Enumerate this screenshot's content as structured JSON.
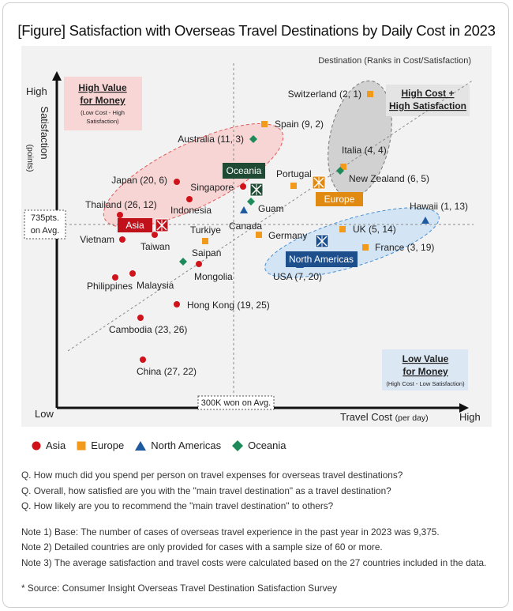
{
  "title": "[Figure] Satisfaction with Overseas Travel Destinations by Daily Cost in 2023",
  "colors": {
    "Asia": "#d0121b",
    "Europe": "#f29a1c",
    "North Americas": "#1f5aa0",
    "Oceania": "#1e8a5a"
  },
  "chart_data": {
    "type": "scatter",
    "title": "[Figure] Satisfaction with Overseas Travel Destinations by Daily Cost in 2023",
    "xlabel": "Travel Cost",
    "xlabel_unit": "(per day)",
    "ylabel": "Satisfaction",
    "ylabel_unit": "(points)",
    "x_low": "Low",
    "x_high": "High",
    "y_high": "High",
    "y_avg_label": "735pts. on Avg.",
    "x_avg_label": "300K won on Avg.",
    "destination_header": "Destination (Ranks in Cost/Satisfaction)",
    "quadrants": {
      "high_value": {
        "title": "High Value for Money",
        "sub": "(Low Cost - High Satisfaction)"
      },
      "high_cost": {
        "title": "High Cost + High Satisfaction"
      },
      "low_value": {
        "title": "Low Value for Money",
        "sub": "(High Cost - Low Satisfaction)"
      }
    },
    "grid": false,
    "points": [
      {
        "label": "Switzerland (2, 1)",
        "region": "Europe",
        "cost_rank": 2,
        "sat_rank": 1
      },
      {
        "label": "Spain (9, 2)",
        "region": "Europe",
        "cost_rank": 9,
        "sat_rank": 2
      },
      {
        "label": "Australia (11, 3)",
        "region": "Oceania",
        "cost_rank": 11,
        "sat_rank": 3
      },
      {
        "label": "Italia (4, 4)",
        "region": "Europe",
        "cost_rank": 4,
        "sat_rank": 4
      },
      {
        "label": "New Zealand (6, 5)",
        "region": "Oceania",
        "cost_rank": 6,
        "sat_rank": 5
      },
      {
        "label": "Japan (20, 6)",
        "region": "Asia",
        "cost_rank": 20,
        "sat_rank": 6
      },
      {
        "label": "Portugal",
        "region": "Europe"
      },
      {
        "label": "Singapore",
        "region": "Asia"
      },
      {
        "label": "Guam",
        "region": "Oceania"
      },
      {
        "label": "Indonesia",
        "region": "Asia"
      },
      {
        "label": "Thailand (26, 12)",
        "region": "Asia",
        "cost_rank": 26,
        "sat_rank": 12
      },
      {
        "label": "Hawaii (1, 13)",
        "region": "North Americas",
        "cost_rank": 1,
        "sat_rank": 13
      },
      {
        "label": "Canada",
        "region": "North Americas"
      },
      {
        "label": "UK (5, 14)",
        "region": "Europe",
        "cost_rank": 5,
        "sat_rank": 14
      },
      {
        "label": "Germany",
        "region": "Europe"
      },
      {
        "label": "Vietnam",
        "region": "Asia"
      },
      {
        "label": "Taiwan",
        "region": "Asia"
      },
      {
        "label": "Turkiye",
        "region": "Europe"
      },
      {
        "label": "France (3, 19)",
        "region": "Europe",
        "cost_rank": 3,
        "sat_rank": 19
      },
      {
        "label": "Saipan",
        "region": "Oceania"
      },
      {
        "label": "USA (7, 20)",
        "region": "North Americas",
        "cost_rank": 7,
        "sat_rank": 20
      },
      {
        "label": "Mongolia",
        "region": "Asia"
      },
      {
        "label": "Philippines",
        "region": "Asia"
      },
      {
        "label": "Malaysia",
        "region": "Asia"
      },
      {
        "label": "Hong Kong (19, 25)",
        "region": "Asia",
        "cost_rank": 19,
        "sat_rank": 25
      },
      {
        "label": "Cambodia (23, 26)",
        "region": "Asia",
        "cost_rank": 23,
        "sat_rank": 26
      },
      {
        "label": "China (27, 22)",
        "region": "Asia",
        "cost_rank": 27,
        "sat_rank": 22
      }
    ],
    "region_averages": [
      "Asia",
      "Oceania",
      "Europe",
      "North Americas"
    ],
    "legend": [
      "Asia",
      "Europe",
      "North Americas",
      "Oceania"
    ]
  },
  "notes": {
    "q1": "Q. How much did you spend per person on travel expenses for overseas travel destinations?",
    "q2": "Q. Overall, how satisfied are you with the \"main travel destination\" as a travel destination?",
    "q3": "Q. How likely are you to recommend the \"main travel destination\" to others?",
    "n1": "Note 1) Base: The number of cases of overseas travel experience in the past year in 2023 was 9,375.",
    "n2": "Note 2) Detailed countries are only provided for cases with a sample size of 60 or more.",
    "n3": "Note 3) The average satisfaction and travel costs were calculated based on the 27 countries included in the data.",
    "source": "* Source: Consumer Insight Overseas Travel Destination Satisfaction Survey"
  }
}
